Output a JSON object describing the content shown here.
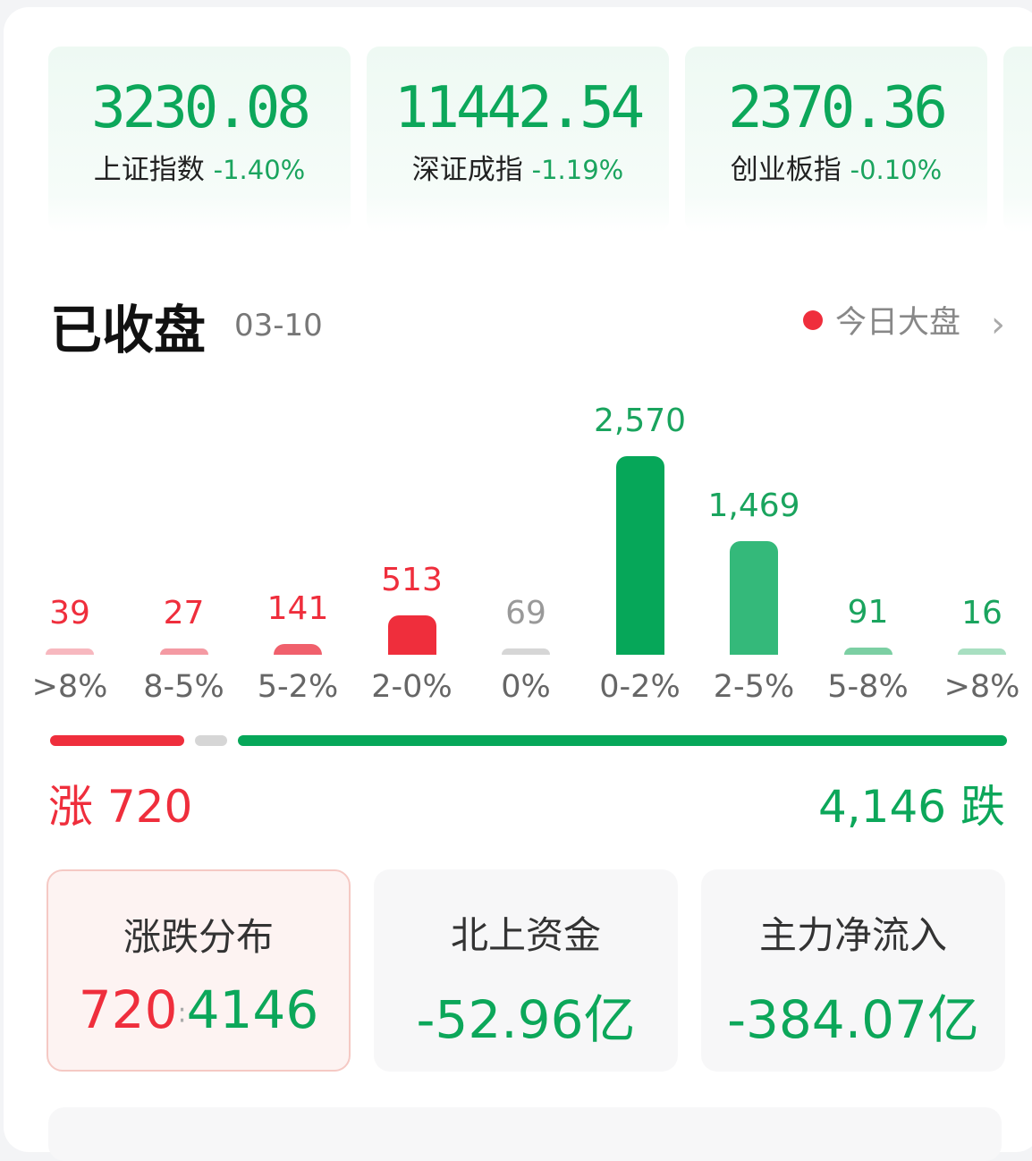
{
  "indices": [
    {
      "value": "3230.08",
      "name": "上证指数",
      "change": "-1.40%"
    },
    {
      "value": "11442.54",
      "name": "深证成指",
      "change": "-1.19%"
    },
    {
      "value": "2370.36",
      "name": "创业板指",
      "change": "-0.10%"
    }
  ],
  "header": {
    "title": "已收盘",
    "date": "03-10",
    "link": "今日大盘"
  },
  "chart_data": {
    "type": "bar",
    "categories": [
      ">8%",
      "8-5%",
      "5-2%",
      "2-0%",
      "0%",
      "0-2%",
      "2-5%",
      "5-8%",
      ">8%"
    ],
    "values": [
      39,
      27,
      141,
      513,
      69,
      2570,
      1469,
      91,
      16
    ],
    "value_labels": [
      "39",
      "27",
      "141",
      "513",
      "69",
      "2,570",
      "1,469",
      "91",
      "16"
    ],
    "colors": [
      "#f7b8bf",
      "#f49aa3",
      "#f0606c",
      "#ef2e3c",
      "#d6d6d6",
      "#06a759",
      "#34b97a",
      "#7ccfa3",
      "#a8dfc1"
    ],
    "label_colors": [
      "#ef2e3c",
      "#ef2e3c",
      "#ef2e3c",
      "#ef2e3c",
      "#999999",
      "#1aa45e",
      "#1aa45e",
      "#1aa45e",
      "#1aa45e"
    ]
  },
  "summary": {
    "up_label": "涨 720",
    "down_label": "4,146 跌",
    "up": 720,
    "flat": 69,
    "down": 4146
  },
  "stats": [
    {
      "title": "涨跌分布",
      "up": "720",
      "sep": ":",
      "down": "4146"
    },
    {
      "title": "北上资金",
      "value": "-52.96亿"
    },
    {
      "title": "主力净流入",
      "value": "-384.07亿"
    }
  ]
}
